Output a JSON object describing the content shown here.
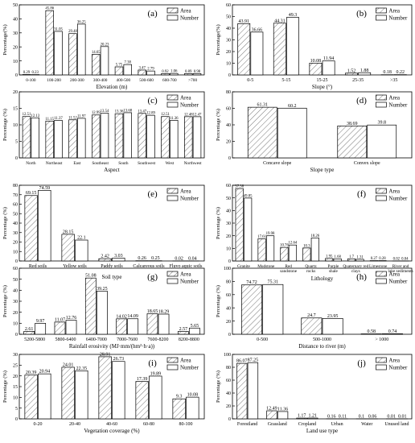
{
  "legend": {
    "area": "Area",
    "number": "Number"
  },
  "chart_data": [
    {
      "id": "a",
      "panel_label": "(a)",
      "type": "bar",
      "ylabel": "Percentage(%)",
      "xlabel": "Elevation (m)",
      "ylim": [
        0,
        50
      ],
      "yticks": [
        "0",
        "10",
        "20",
        "30",
        "40",
        "50"
      ],
      "categories": [
        "0-100",
        "100-200",
        "200-300",
        "300-400",
        "400-500",
        "500-600",
        "600-700",
        ">700"
      ],
      "series": [
        {
          "name": "Area",
          "values": [
            0.29,
            45.86,
            29.48,
            14.65,
            5.75,
            3.47,
            0.92,
            0.89
          ]
        },
        {
          "name": "Number",
          "values": [
            0.23,
            31.05,
            36.25,
            20.23,
            7.38,
            2.79,
            1.06,
            0.98
          ]
        }
      ]
    },
    {
      "id": "b",
      "panel_label": "(b)",
      "type": "bar",
      "ylabel": "Percentage(%)",
      "xlabel": "Slope (°)",
      "ylim": [
        0,
        60
      ],
      "yticks": [
        "0",
        "10",
        "20",
        "30",
        "40",
        "50",
        "60"
      ],
      "categories": [
        "0-5",
        "5-15",
        "15-25",
        "25-35",
        ">35"
      ],
      "series": [
        {
          "name": "Area",
          "values": [
            43.91,
            44.31,
            10.08,
            1.52,
            0.18
          ]
        },
        {
          "name": "Number",
          "values": [
            36.66,
            49.3,
            11.94,
            1.88,
            0.22
          ]
        }
      ]
    },
    {
      "id": "c",
      "panel_label": "(c)",
      "type": "bar",
      "ylabel": "Percentage (%)",
      "xlabel": "Aspect",
      "ylim": [
        0,
        20
      ],
      "yticks": [
        "0",
        "5",
        "10",
        "15",
        "20"
      ],
      "categories": [
        "North",
        "Northeast",
        "East",
        "Southeast",
        "South",
        "Southwest",
        "West",
        "Northwest"
      ],
      "series": [
        {
          "name": "Area",
          "values": [
            12.51,
            11.15,
            11.52,
            12.99,
            13.36,
            13.47,
            12.51,
            12.48
          ]
        },
        {
          "name": "Number",
          "values": [
            12.13,
            11.37,
            11.97,
            13.54,
            13.68,
            12.89,
            11.36,
            12.47
          ]
        }
      ]
    },
    {
      "id": "d",
      "panel_label": "(d)",
      "type": "bar",
      "ylabel": "Percentage (%)",
      "xlabel": "Slope type",
      "ylim": [
        0,
        80
      ],
      "yticks": [
        "0",
        "20",
        "40",
        "60",
        "80"
      ],
      "categories": [
        "Concave slope",
        "Convex slope"
      ],
      "series": [
        {
          "name": "Area",
          "values": [
            61.31,
            38.69
          ]
        },
        {
          "name": "Number",
          "values": [
            60.2,
            39.8
          ]
        }
      ]
    },
    {
      "id": "e",
      "panel_label": "(e)",
      "type": "bar",
      "ylabel": "Percentage (%)",
      "xlabel": "Soil type",
      "ylim": [
        0,
        80
      ],
      "yticks": [
        "0",
        "10",
        "20",
        "30",
        "40",
        "50",
        "60",
        "70",
        "80"
      ],
      "categories": [
        "Red soils",
        "Yellow soils",
        "Paddy soils",
        "Calcareous soils",
        "Fluvo aquic soils"
      ],
      "series": [
        {
          "name": "Area",
          "values": [
            69.15,
            28.15,
            2.42,
            0.26,
            0.02
          ]
        },
        {
          "name": "Number",
          "values": [
            74.59,
            22.1,
            3.03,
            0.25,
            0.04
          ]
        }
      ]
    },
    {
      "id": "f",
      "panel_label": "(f)",
      "type": "bar",
      "ylabel": "Percentage (%)",
      "xlabel": "Lithology",
      "ylim": [
        0,
        60
      ],
      "yticks": [
        "0",
        "10",
        "20",
        "30",
        "40",
        "50",
        "60"
      ],
      "categories": [
        "Granite",
        "Mudstone",
        "Red sandstone",
        "Quartz rocks",
        "Purple shale",
        "Quaternary red clays",
        "Limestone",
        "River and lake sediments"
      ],
      "series": [
        {
          "name": "Area",
          "values": [
            57.38,
            17.61,
            10.76,
            10.3,
            1.95,
            1.7,
            0.27,
            0.02
          ]
        },
        {
          "name": "Number",
          "values": [
            49.85,
            19.98,
            12.64,
            18.26,
            1.68,
            1.31,
            0.28,
            0.04
          ]
        }
      ]
    },
    {
      "id": "g",
      "panel_label": "(g)",
      "type": "bar",
      "ylabel": "Percentage (%)",
      "xlabel": "Rainfall erosivity (MJ·mm/(hm²·h·a))",
      "ylim": [
        0,
        60
      ],
      "yticks": [
        "0",
        "10",
        "20",
        "30",
        "40",
        "50",
        "60"
      ],
      "categories": [
        "5200-5800",
        "5800-6400",
        "6400-7000",
        "7000-7600",
        "7600-8200",
        "8200-8800"
      ],
      "series": [
        {
          "name": "Area",
          "values": [
            2.61,
            11.07,
            51.08,
            14.02,
            18.65,
            2.57
          ]
        },
        {
          "name": "Number",
          "values": [
            9.97,
            12.76,
            39.25,
            14.09,
            18.29,
            5.65
          ]
        }
      ]
    },
    {
      "id": "h",
      "panel_label": "(h)",
      "type": "bar",
      "ylabel": "Percentage (%)",
      "xlabel": "Distance to river (m)",
      "ylim": [
        0,
        100
      ],
      "yticks": [
        "0",
        "20",
        "40",
        "60",
        "80",
        "100"
      ],
      "categories": [
        "0-500",
        "500-1000",
        "> 1000"
      ],
      "series": [
        {
          "name": "Area",
          "values": [
            74.72,
            24.7,
            0.58
          ]
        },
        {
          "name": "Number",
          "values": [
            75.31,
            23.95,
            0.74
          ]
        }
      ]
    },
    {
      "id": "i",
      "panel_label": "(i)",
      "type": "bar",
      "ylabel": "Percentage (%)",
      "xlabel": "Vegetation coverage (%)",
      "ylim": [
        0,
        30
      ],
      "yticks": [
        "0",
        "5",
        "10",
        "15",
        "20",
        "25",
        "30"
      ],
      "categories": [
        "0-20",
        "20-40",
        "40-60",
        "60-80",
        "80-100"
      ],
      "series": [
        {
          "name": "Area",
          "values": [
            20.39,
            24.01,
            28.91,
            17.39,
            9.3
          ]
        },
        {
          "name": "Number",
          "values": [
            20.94,
            22.35,
            26.73,
            19.89,
            10.08
          ]
        }
      ]
    },
    {
      "id": "j",
      "panel_label": "(j)",
      "type": "bar",
      "ylabel": "Percentage (%)",
      "xlabel": "Land use type",
      "ylim": [
        0,
        100
      ],
      "yticks": [
        "0",
        "20",
        "40",
        "60",
        "80",
        "100"
      ],
      "categories": [
        "Forestland",
        "Grassland",
        "Cropland",
        "Urban",
        "Water",
        "Unused land"
      ],
      "series": [
        {
          "name": "Area",
          "values": [
            86.07,
            12.49,
            1.17,
            0.16,
            0.1,
            0.01
          ]
        },
        {
          "name": "Number",
          "values": [
            87.25,
            11.36,
            1.21,
            0.11,
            0.06,
            0.01
          ]
        }
      ]
    }
  ]
}
